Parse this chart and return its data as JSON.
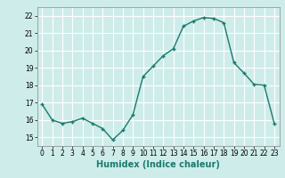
{
  "x": [
    0,
    1,
    2,
    3,
    4,
    5,
    6,
    7,
    8,
    9,
    10,
    11,
    12,
    13,
    14,
    15,
    16,
    17,
    18,
    19,
    20,
    21,
    22,
    23
  ],
  "y": [
    16.9,
    16.0,
    15.8,
    15.9,
    16.1,
    15.8,
    15.5,
    14.85,
    15.4,
    16.3,
    18.5,
    19.1,
    19.7,
    20.1,
    21.4,
    21.7,
    21.9,
    21.85,
    21.6,
    19.3,
    18.7,
    18.05,
    18.0,
    15.8
  ],
  "line_color": "#1a7a6e",
  "marker": "+",
  "marker_size": 3,
  "bg_color": "#ceecea",
  "grid_color": "#ffffff",
  "xlabel": "Humidex (Indice chaleur)",
  "xlim": [
    -0.5,
    23.5
  ],
  "ylim": [
    14.5,
    22.5
  ],
  "yticks": [
    15,
    16,
    17,
    18,
    19,
    20,
    21,
    22
  ],
  "xticks": [
    0,
    1,
    2,
    3,
    4,
    5,
    6,
    7,
    8,
    9,
    10,
    11,
    12,
    13,
    14,
    15,
    16,
    17,
    18,
    19,
    20,
    21,
    22,
    23
  ],
  "tick_fontsize": 5.5,
  "xlabel_fontsize": 7.0,
  "line_width": 1.0
}
